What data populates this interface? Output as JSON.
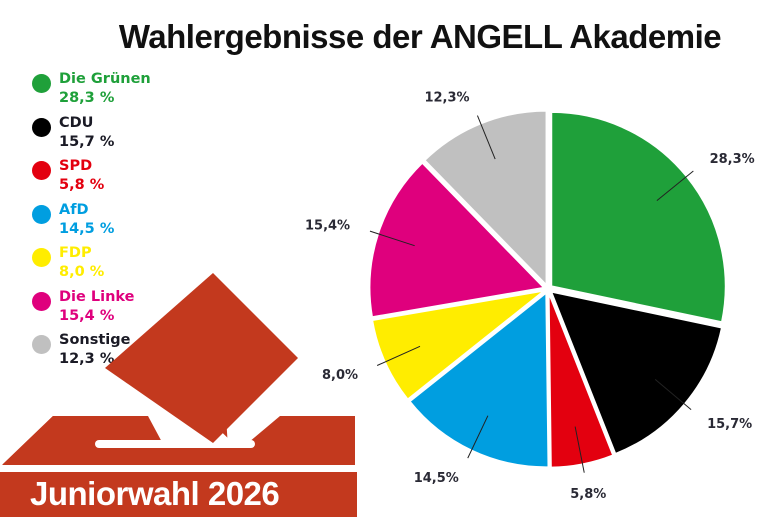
{
  "title": "Wahlergebnisse der ANGELL Akademie",
  "banner": {
    "text": "Juniorwahl 2026"
  },
  "legend": [
    {
      "name": "Die Grünen",
      "value": "28,3 %",
      "color": "#1fa03a",
      "text_color": "#1fa03a"
    },
    {
      "name": "CDU",
      "value": "15,7 %",
      "color": "#000000",
      "text_color": "#1a1a25"
    },
    {
      "name": "SPD",
      "value": "5,8 %",
      "color": "#e3000f",
      "text_color": "#e3000f"
    },
    {
      "name": "AfD",
      "value": "14,5 %",
      "color": "#009ee0",
      "text_color": "#009ee0"
    },
    {
      "name": "FDP",
      "value": "8,0 %",
      "color": "#ffed00",
      "text_color": "#ffed00"
    },
    {
      "name": "Die Linke",
      "value": "15,4 %",
      "color": "#df007d",
      "text_color": "#df007d"
    },
    {
      "name": "Sonstige",
      "value": "12,3 %",
      "color": "#c0c0c0",
      "text_color": "#1a1a25"
    }
  ],
  "chart_data": {
    "type": "pie",
    "title": "Wahlergebnisse der ANGELL Akademie",
    "categories": [
      "Die Grünen",
      "CDU",
      "SPD",
      "AfD",
      "FDP",
      "Die Linke",
      "Sonstige"
    ],
    "values": [
      28.3,
      15.7,
      5.8,
      14.5,
      8.0,
      15.4,
      12.3
    ],
    "labels": [
      "28,3%",
      "15,7%",
      "5,8%",
      "14,5%",
      "8,0%",
      "15,4%",
      "12,3%"
    ],
    "colors": [
      "#1fa03a",
      "#000000",
      "#e3000f",
      "#009ee0",
      "#ffed00",
      "#df007d",
      "#c0c0c0"
    ],
    "start_angle": "12 o'clock",
    "direction": "clockwise",
    "legend_position": "left",
    "exploded": true
  }
}
